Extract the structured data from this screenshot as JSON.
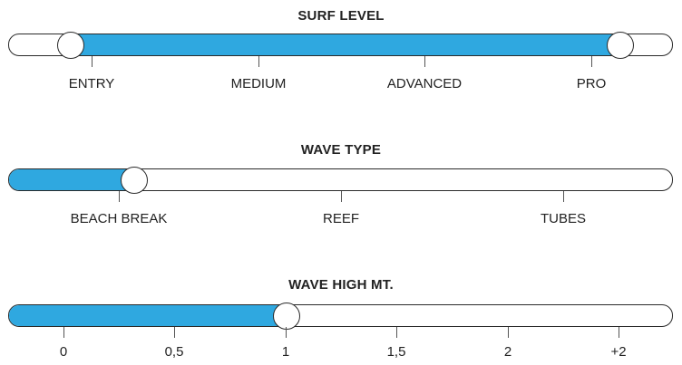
{
  "surf_level": {
    "title": "SURF LEVEL",
    "labels": [
      "ENTRY",
      "MEDIUM",
      "ADVANCED",
      "PRO"
    ],
    "range_low_label": "ENTRY",
    "range_high_label": "PRO",
    "fill_color": "#2fa8e0"
  },
  "wave_type": {
    "title": "WAVE TYPE",
    "labels": [
      "BEACH BREAK",
      "REEF",
      "TUBES"
    ],
    "selected_label": "BEACH BREAK",
    "fill_color": "#2fa8e0"
  },
  "wave_high": {
    "title": "WAVE HIGH MT.",
    "labels": [
      "0",
      "0,5",
      "1",
      "1,5",
      "2",
      "+2"
    ],
    "selected_label": "1",
    "fill_color": "#2fa8e0"
  }
}
